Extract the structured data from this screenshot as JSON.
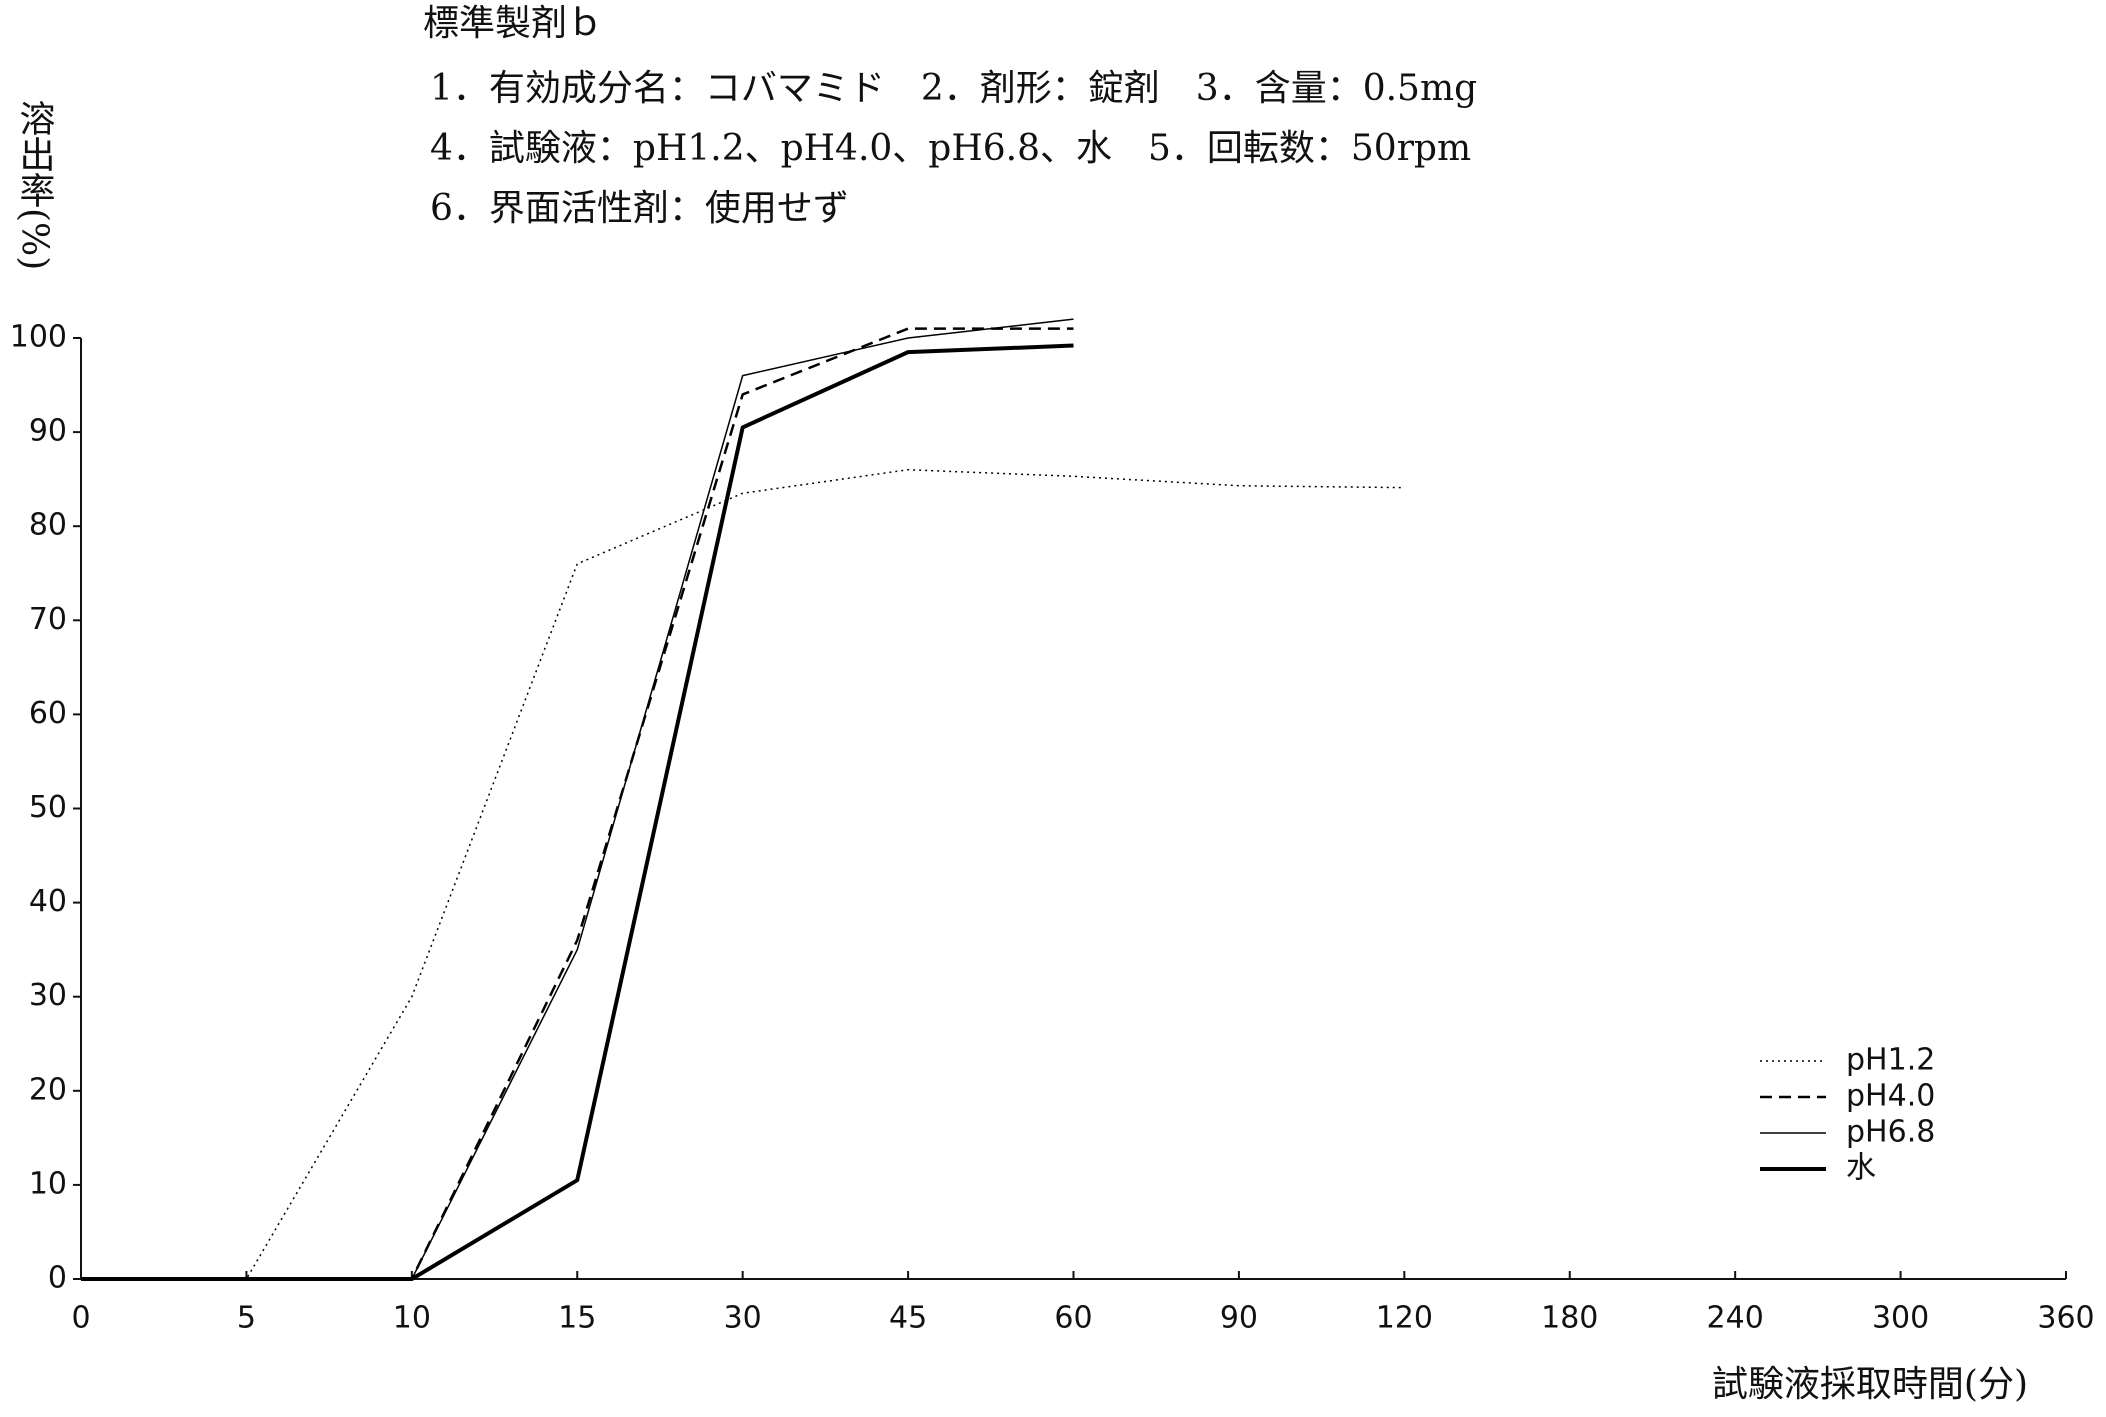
{
  "chart_data": {
    "type": "line",
    "title": "標準製剤ｂ",
    "subtitle": [
      "1．有効成分名：コバマミド　2．剤形：錠剤　3．含量：0.5mg",
      "4．試験液：pH1.2、pH4.0、pH6.8、水　5．回転数：50rpm",
      "6．界面活性剤：使用せず"
    ],
    "y_label": "溶出率(%)",
    "x_label": "試験液採取時間(分)",
    "categories": [
      "0",
      "5",
      "10",
      "15",
      "30",
      "45",
      "60",
      "90",
      "120",
      "180",
      "240",
      "300",
      "360"
    ],
    "series": [
      {
        "name": "pH1.2",
        "color": "#000000",
        "line_style": "dotted",
        "values": [
          0,
          0,
          30,
          76,
          83.5,
          86,
          85.3,
          84.3,
          84.1,
          null,
          null,
          null,
          null
        ]
      },
      {
        "name": "pH4.0",
        "color": "#000000",
        "line_style": "dashed",
        "values": [
          0,
          0,
          0,
          36,
          94,
          101,
          101,
          null,
          null,
          null,
          null,
          null,
          null
        ]
      },
      {
        "name": "pH6.8",
        "color": "#000000",
        "line_style": "thin",
        "values": [
          0,
          0,
          0,
          35,
          96,
          100,
          102,
          null,
          null,
          null,
          null,
          null,
          null
        ]
      },
      {
        "name": "水",
        "color": "#000000",
        "line_style": "thick",
        "values": [
          0,
          0,
          0,
          10.5,
          90.5,
          98.5,
          99.2,
          null,
          null,
          null,
          null,
          null,
          null
        ]
      }
    ],
    "ylim": [
      0,
      100
    ],
    "yticks": [
      0,
      10,
      20,
      30,
      40,
      50,
      60,
      70,
      80,
      90,
      100
    ],
    "grid": false,
    "legend": "lower right"
  }
}
